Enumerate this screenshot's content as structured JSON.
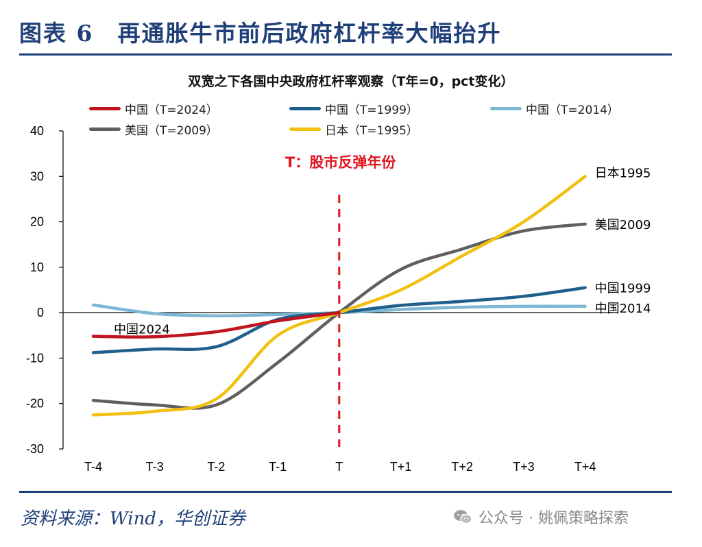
{
  "header": {
    "title": "图表 6　再通胀牛市前后政府杠杆率大幅抬升"
  },
  "source": "资料来源：Wind，华创证券",
  "watermark": "公众号 · 姚佩策略探索",
  "chart_data": {
    "type": "line",
    "title": "双宽之下各国中央政府杠杆率观察（T年=0，pct变化）",
    "categories": [
      "T-4",
      "T-3",
      "T-2",
      "T-1",
      "T",
      "T+1",
      "T+2",
      "T+3",
      "T+4"
    ],
    "ylim": [
      -30,
      40
    ],
    "yticks": [
      -30,
      -20,
      -10,
      0,
      10,
      20,
      30,
      40
    ],
    "grid": false,
    "legend_position": "top",
    "annotation": "T：股市反弹年份",
    "series": [
      {
        "name": "中国（T=2024）",
        "color": "#c0141f",
        "end_label": "中国2024",
        "values": [
          -5.2,
          -5.3,
          -4.2,
          -1.8,
          0,
          null,
          null,
          null,
          null
        ]
      },
      {
        "name": "中国（T=1999）",
        "color": "#1f5f8b",
        "end_label": "中国1999",
        "values": [
          -8.8,
          -8.0,
          -7.5,
          -1.5,
          0,
          1.6,
          2.5,
          3.6,
          5.5
        ]
      },
      {
        "name": "中国（T=2014）",
        "color": "#7db7d3",
        "end_label": "中国2014",
        "values": [
          1.7,
          -0.2,
          -0.7,
          -0.4,
          0,
          0.7,
          1.2,
          1.4,
          1.4
        ]
      },
      {
        "name": "美国（T=2009）",
        "color": "#5f5f5f",
        "end_label": "美国2009",
        "values": [
          -19.3,
          -20.3,
          -20.3,
          -11.0,
          0,
          9.5,
          14.0,
          18.0,
          19.5
        ]
      },
      {
        "name": "日本（T=1995）",
        "color": "#f2c010",
        "end_label": "日本1995",
        "values": [
          -22.5,
          -21.7,
          -19.0,
          -5.0,
          0,
          5.0,
          12.5,
          20.0,
          30.0
        ]
      }
    ]
  }
}
